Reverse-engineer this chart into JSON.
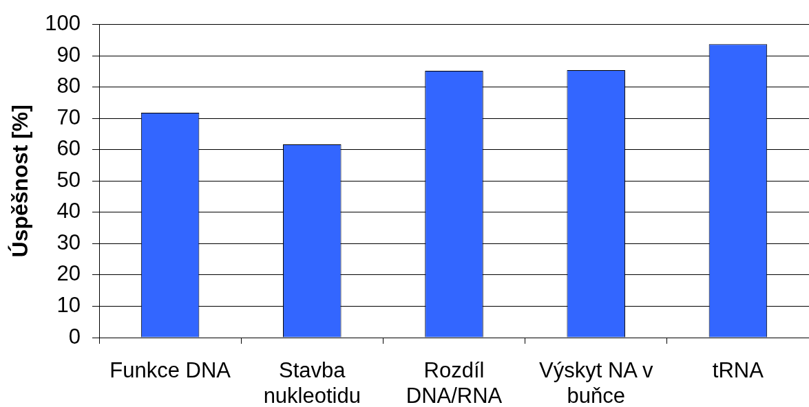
{
  "chart_data": {
    "type": "bar",
    "ylabel": "Úspěšnost [%]",
    "categories": [
      "Funkce DNA",
      "Stavba nukleotidu",
      "Rozdíl DNA/RNA",
      "Výskyt NA v buňce",
      "tRNA"
    ],
    "values": [
      71.8,
      61.7,
      85.2,
      85.4,
      93.7
    ],
    "color": "#3366ff",
    "ylim": [
      0,
      100
    ],
    "yticks": [
      0,
      10,
      20,
      30,
      40,
      50,
      60,
      70,
      80,
      90,
      100
    ],
    "grid": "y"
  }
}
